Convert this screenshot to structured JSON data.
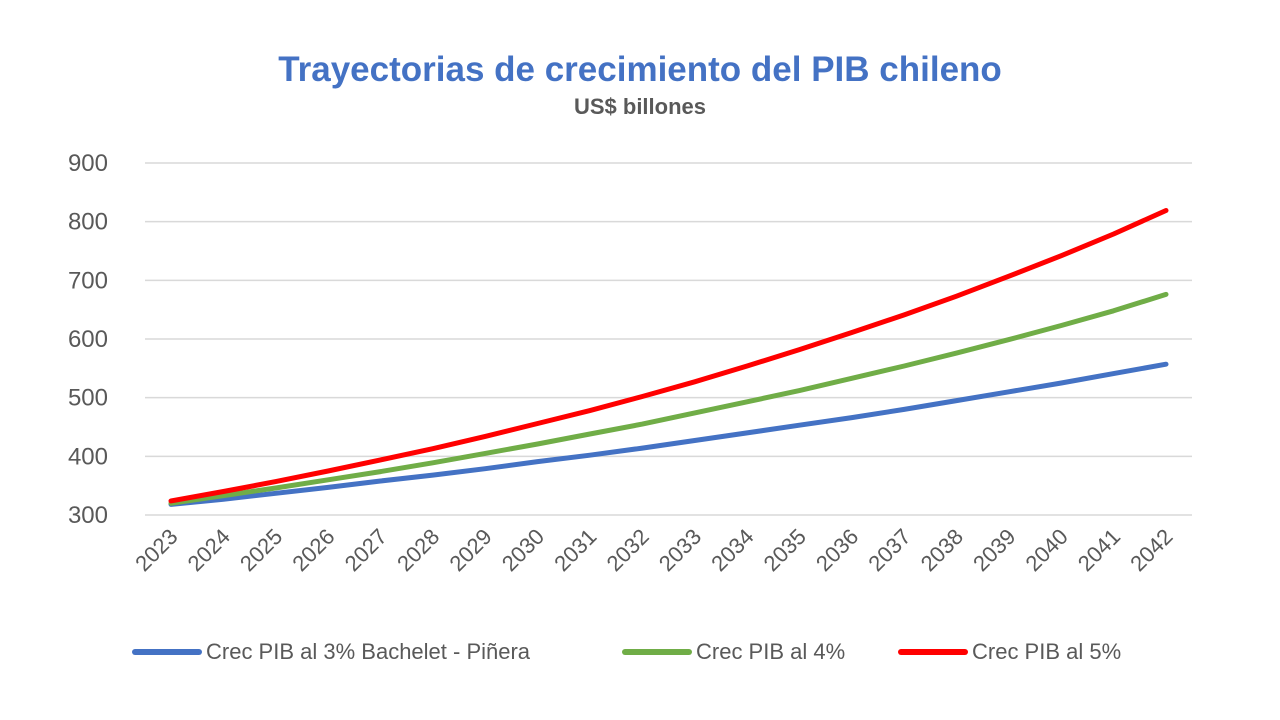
{
  "chart_data": {
    "type": "line",
    "title": "Trayectorias de crecimiento del PIB chileno",
    "subtitle": "US$ billones",
    "xlabel": "",
    "ylabel": "",
    "ylim": [
      300,
      900
    ],
    "yticks": [
      300,
      400,
      500,
      600,
      700,
      800,
      900
    ],
    "grid": true,
    "legend_position": "bottom",
    "x": [
      "2023",
      "2024",
      "2025",
      "2026",
      "2027",
      "2028",
      "2029",
      "2030",
      "2031",
      "2032",
      "2033",
      "2034",
      "2035",
      "2036",
      "2037",
      "2038",
      "2039",
      "2040",
      "2041",
      "2042"
    ],
    "series": [
      {
        "name": "Crec PIB al 3% Bachelet - Piñera",
        "color": "#4472C4",
        "values": [
          318,
          327,
          337,
          347,
          358,
          368,
          379,
          391,
          402,
          414,
          427,
          440,
          453,
          466,
          480,
          495,
          510,
          525,
          541,
          557
        ]
      },
      {
        "name": "Crec PIB al 4%",
        "color": "#70AD47",
        "values": [
          320,
          333,
          346,
          360,
          374,
          389,
          405,
          421,
          438,
          455,
          474,
          493,
          512,
          533,
          554,
          576,
          599,
          623,
          648,
          676
        ]
      },
      {
        "name": "Crec PIB al 5%",
        "color": "#FF0000",
        "values": [
          324,
          340,
          357,
          375,
          394,
          413,
          434,
          456,
          478,
          502,
          527,
          554,
          582,
          611,
          641,
          673,
          707,
          742,
          779,
          819
        ]
      }
    ]
  }
}
